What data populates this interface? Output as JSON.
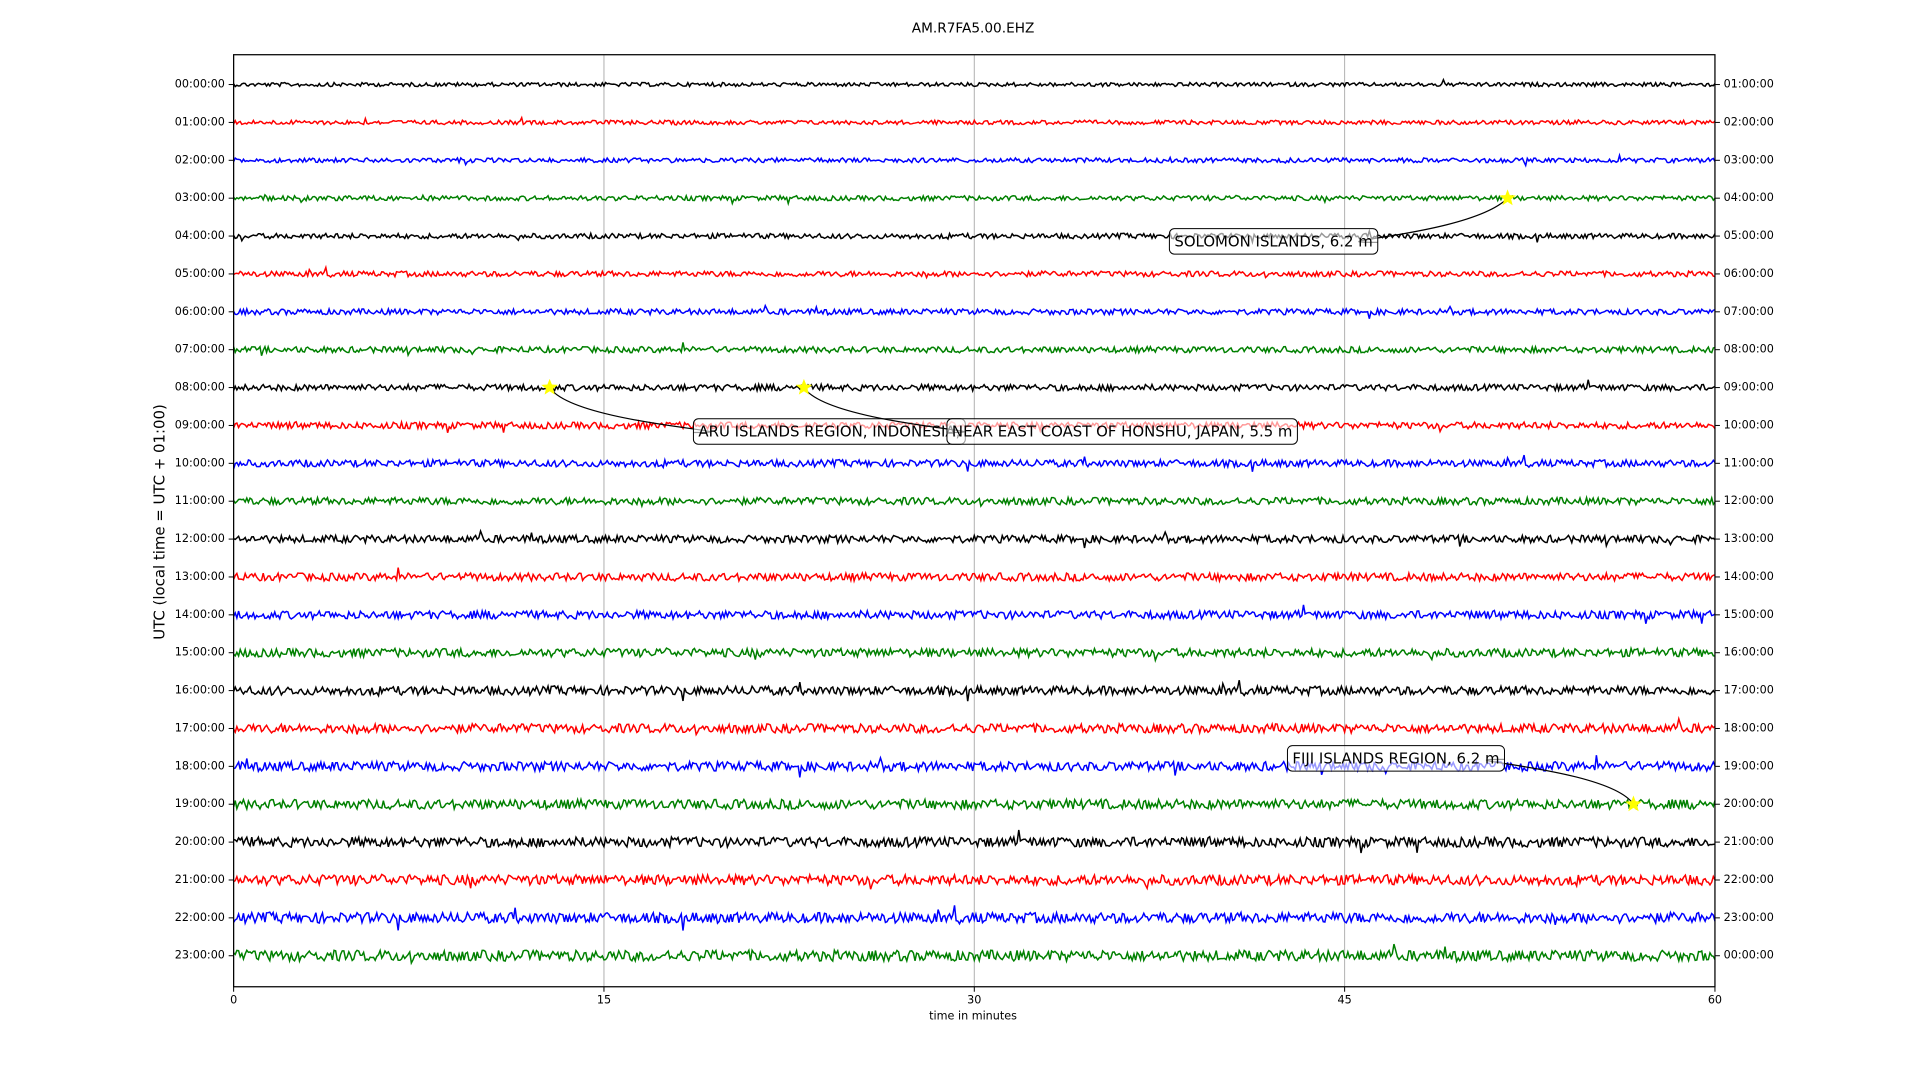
{
  "chart_data": {
    "type": "dayplot",
    "title": "AM.R7FA5.00.EHZ",
    "x_label": "time in minutes",
    "y_label": "UTC (local time = UTC + 01:00)",
    "xlim": [
      0,
      60
    ],
    "xticks": [
      0,
      15,
      30,
      45,
      60
    ],
    "grid": true,
    "categories": [
      "00:00:00",
      "01:00:00",
      "02:00:00",
      "03:00:00",
      "04:00:00",
      "05:00:00",
      "06:00:00",
      "07:00:00",
      "08:00:00",
      "09:00:00",
      "10:00:00",
      "11:00:00",
      "12:00:00",
      "13:00:00",
      "14:00:00",
      "15:00:00",
      "16:00:00",
      "17:00:00",
      "18:00:00",
      "19:00:00",
      "20:00:00",
      "21:00:00",
      "22:00:00",
      "23:00:00"
    ],
    "right_labels": [
      "01:00:00",
      "02:00:00",
      "03:00:00",
      "04:00:00",
      "05:00:00",
      "06:00:00",
      "07:00:00",
      "08:00:00",
      "09:00:00",
      "10:00:00",
      "11:00:00",
      "12:00:00",
      "13:00:00",
      "14:00:00",
      "15:00:00",
      "16:00:00",
      "17:00:00",
      "18:00:00",
      "19:00:00",
      "20:00:00",
      "21:00:00",
      "22:00:00",
      "23:00:00",
      "00:00:00"
    ],
    "colors": [
      "#000000",
      "#ff0000",
      "#0000ff",
      "#008000"
    ],
    "events": [
      {
        "label": "SOLOMON ISLANDS, 6.2 m",
        "minute": 51.6,
        "row": "03:00:00"
      },
      {
        "label": "ARU ISLANDS REGION, INDONESIA,",
        "minute": 12.8,
        "row": "08:00:00"
      },
      {
        "label": "NEAR EAST COAST OF HONSHU, JAPAN, 5.5 m",
        "minute": 23.1,
        "row": "08:00:00"
      },
      {
        "label": "FIJI ISLANDS REGION, 6.2 m",
        "minute": 56.7,
        "row": "19:00:00"
      }
    ]
  }
}
